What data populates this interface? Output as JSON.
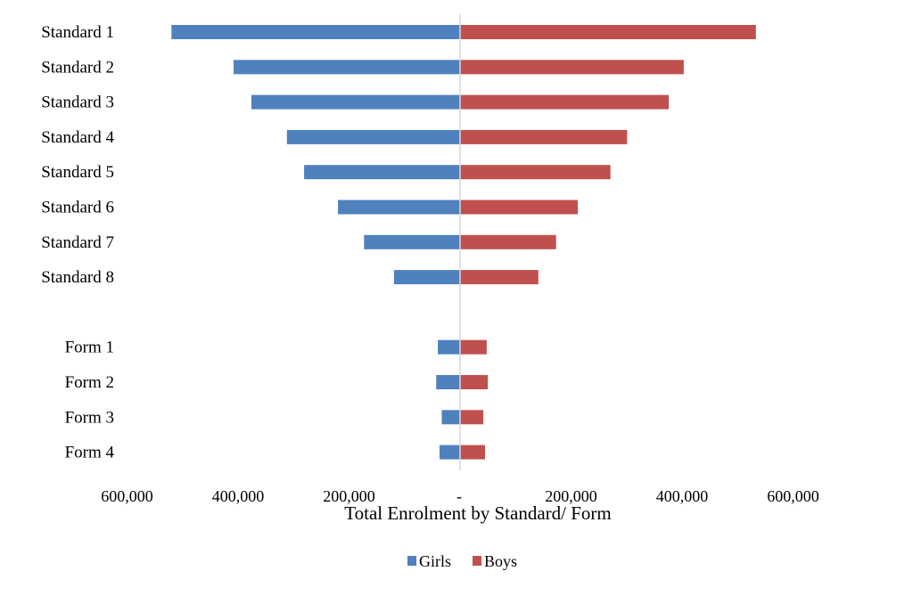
{
  "chart_data": {
    "type": "bar",
    "orientation": "horizontal",
    "layout": "butterfly",
    "title": "",
    "xlabel": "Total Enrolment by Standard/ Form",
    "ylabel": "",
    "xlim": [
      -600000,
      600000
    ],
    "x_ticks": [
      -600000,
      -400000,
      -200000,
      0,
      200000,
      400000,
      600000
    ],
    "x_tick_labels": [
      "600,000",
      "400,000",
      "200,000",
      "-",
      "200,000",
      "400,000",
      "600,000"
    ],
    "categories": [
      "Standard 1",
      "Standard 2",
      "Standard 3",
      "Standard 4",
      "Standard 5",
      "Standard 6",
      "Standard 7",
      "Standard 8",
      "",
      "Form 1",
      "Form 2",
      "Form 3",
      "Form 4"
    ],
    "series": [
      {
        "name": "Girls",
        "side": "left",
        "color": "#4f81bd",
        "values": [
          520000,
          408000,
          376000,
          312000,
          281000,
          220000,
          173000,
          119000,
          null,
          40000,
          43000,
          33000,
          37000
        ]
      },
      {
        "name": "Boys",
        "side": "right",
        "color": "#c0504d",
        "values": [
          533000,
          403000,
          376000,
          301000,
          271000,
          212000,
          173000,
          141000,
          null,
          48000,
          50000,
          42000,
          45000
        ]
      }
    ],
    "grid": false,
    "legend_position": "bottom"
  }
}
